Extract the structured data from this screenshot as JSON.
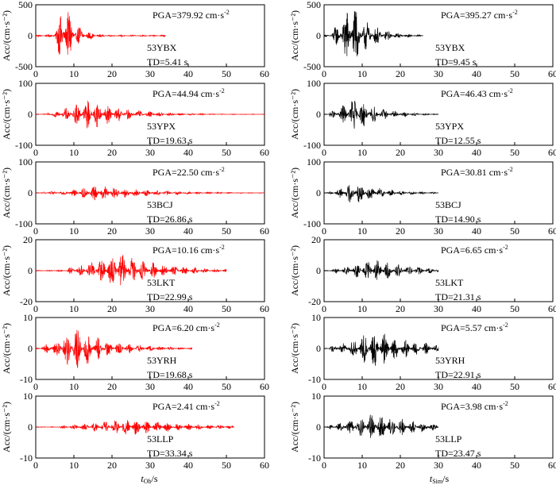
{
  "figure": {
    "y_axis_label": "Acc/(cm·s⁻²)",
    "x_axis_label_left": "t",
    "x_axis_label_left_sub": "Ob",
    "x_axis_label_left_unit": "/s",
    "x_axis_label_right": "t",
    "x_axis_label_right_sub": "Sim",
    "x_axis_label_right_unit": "/s",
    "observed_color": "#ff0000",
    "simulated_color": "#000000"
  },
  "chart_data": [
    {
      "type": "line",
      "panel": "observed",
      "row": 1,
      "station": "53YBX",
      "pga_label": "PGA=379.92 cm·s",
      "pga_exp": "-2",
      "td_label": "TD=5.41 s",
      "pga": 379.92,
      "td": 5.41,
      "duration": 34,
      "peak_time": 7.5,
      "xlim": [
        0,
        60
      ],
      "ylim": [
        -500,
        500
      ],
      "xticks": [
        0,
        10,
        20,
        30,
        40,
        50,
        60
      ],
      "yticks": [
        -500,
        0,
        500
      ]
    },
    {
      "type": "line",
      "panel": "simulated",
      "row": 1,
      "station": "53YBX",
      "pga_label": "PGA=395.27 cm·s",
      "pga_exp": "-2",
      "td_label": "TD=9.45 s",
      "pga": 395.27,
      "td": 9.45,
      "duration": 26,
      "peak_time": 7,
      "xlim": [
        0,
        60
      ],
      "ylim": [
        -500,
        500
      ],
      "xticks": [
        0,
        10,
        20,
        30,
        40,
        50,
        60
      ],
      "yticks": [
        -500,
        0,
        500
      ]
    },
    {
      "type": "line",
      "panel": "observed",
      "row": 2,
      "station": "53YPX",
      "pga_label": "PGA=44.94 cm·s",
      "pga_exp": "-2",
      "td_label": "TD=19.63 s",
      "pga": 44.94,
      "td": 19.63,
      "duration": 60,
      "peak_time": 14,
      "xlim": [
        0,
        60
      ],
      "ylim": [
        -100,
        100
      ],
      "xticks": [
        0,
        10,
        20,
        30,
        40,
        50,
        60
      ],
      "yticks": [
        -100,
        0,
        100
      ]
    },
    {
      "type": "line",
      "panel": "simulated",
      "row": 2,
      "station": "53YPX",
      "pga_label": "PGA=46.43 cm·s",
      "pga_exp": "-2",
      "td_label": "TD=12.55 s",
      "pga": 46.43,
      "td": 12.55,
      "duration": 30,
      "peak_time": 8,
      "xlim": [
        0,
        60
      ],
      "ylim": [
        -100,
        100
      ],
      "xticks": [
        0,
        10,
        20,
        30,
        40,
        50,
        60
      ],
      "yticks": [
        -100,
        0,
        100
      ]
    },
    {
      "type": "line",
      "panel": "observed",
      "row": 3,
      "station": "53BCJ",
      "pga_label": "PGA=22.50 cm·s",
      "pga_exp": "-2",
      "td_label": "TD=26.86 s",
      "pga": 22.5,
      "td": 26.86,
      "duration": 60,
      "peak_time": 17,
      "xlim": [
        0,
        60
      ],
      "ylim": [
        -100,
        100
      ],
      "xticks": [
        0,
        10,
        20,
        30,
        40,
        50,
        60
      ],
      "yticks": [
        -100,
        0,
        100
      ]
    },
    {
      "type": "line",
      "panel": "simulated",
      "row": 3,
      "station": "53BCJ",
      "pga_label": "PGA=30.81 cm·s",
      "pga_exp": "-2",
      "td_label": "TD=14.90 s",
      "pga": 30.81,
      "td": 14.9,
      "duration": 30,
      "peak_time": 8,
      "xlim": [
        0,
        60
      ],
      "ylim": [
        -100,
        100
      ],
      "xticks": [
        0,
        10,
        20,
        30,
        40,
        50,
        60
      ],
      "yticks": [
        -100,
        0,
        100
      ]
    },
    {
      "type": "line",
      "panel": "observed",
      "row": 4,
      "station": "53LKT",
      "pga_label": "PGA=10.16 cm·s",
      "pga_exp": "-2",
      "td_label": "TD=22.99 s",
      "pga": 10.16,
      "td": 22.99,
      "duration": 50,
      "peak_time": 21,
      "xlim": [
        0,
        60
      ],
      "ylim": [
        -20,
        20
      ],
      "xticks": [
        0,
        10,
        20,
        30,
        40,
        50,
        60
      ],
      "yticks": [
        -20,
        0,
        20
      ]
    },
    {
      "type": "line",
      "panel": "simulated",
      "row": 4,
      "station": "53LKT",
      "pga_label": "PGA=6.65 cm·s",
      "pga_exp": "-2",
      "td_label": "TD=21.31 s",
      "pga": 6.65,
      "td": 21.31,
      "duration": 30,
      "peak_time": 13,
      "xlim": [
        0,
        60
      ],
      "ylim": [
        -20,
        20
      ],
      "xticks": [
        0,
        10,
        20,
        30,
        40,
        50,
        60
      ],
      "yticks": [
        -20,
        0,
        20
      ]
    },
    {
      "type": "line",
      "panel": "observed",
      "row": 5,
      "station": "53YRH",
      "pga_label": "PGA=6.20 cm·s",
      "pga_exp": "-2",
      "td_label": "TD=19.68 s",
      "pga": 6.2,
      "td": 19.68,
      "duration": 41,
      "peak_time": 10,
      "xlim": [
        0,
        60
      ],
      "ylim": [
        -10,
        10
      ],
      "xticks": [
        0,
        10,
        20,
        30,
        40,
        50,
        60
      ],
      "yticks": [
        -10,
        0,
        10
      ]
    },
    {
      "type": "line",
      "panel": "simulated",
      "row": 5,
      "station": "53YRH",
      "pga_label": "PGA=5.57 cm·s",
      "pga_exp": "-2",
      "td_label": "TD=22.91 s",
      "pga": 5.57,
      "td": 22.91,
      "duration": 30,
      "peak_time": 13,
      "xlim": [
        0,
        60
      ],
      "ylim": [
        -10,
        10
      ],
      "xticks": [
        0,
        10,
        20,
        30,
        40,
        50,
        60
      ],
      "yticks": [
        -10,
        0,
        10
      ]
    },
    {
      "type": "line",
      "panel": "observed",
      "row": 6,
      "station": "53LLP",
      "pga_label": "PGA=2.41 cm·s",
      "pga_exp": "-2",
      "td_label": "TD=33.34 s",
      "pga": 2.41,
      "td": 33.34,
      "duration": 52,
      "peak_time": 24,
      "xlim": [
        0,
        60
      ],
      "ylim": [
        -10,
        10
      ],
      "xticks": [
        0,
        10,
        20,
        30,
        40,
        50,
        60
      ],
      "yticks": [
        -10,
        0,
        10
      ]
    },
    {
      "type": "line",
      "panel": "simulated",
      "row": 6,
      "station": "53LLP",
      "pga_label": "PGA=3.98 cm·s",
      "pga_exp": "-2",
      "td_label": "TD=23.47 s",
      "pga": 3.98,
      "td": 23.47,
      "duration": 30,
      "peak_time": 13,
      "xlim": [
        0,
        60
      ],
      "ylim": [
        -10,
        10
      ],
      "xticks": [
        0,
        10,
        20,
        30,
        40,
        50,
        60
      ],
      "yticks": [
        -10,
        0,
        10
      ]
    }
  ]
}
